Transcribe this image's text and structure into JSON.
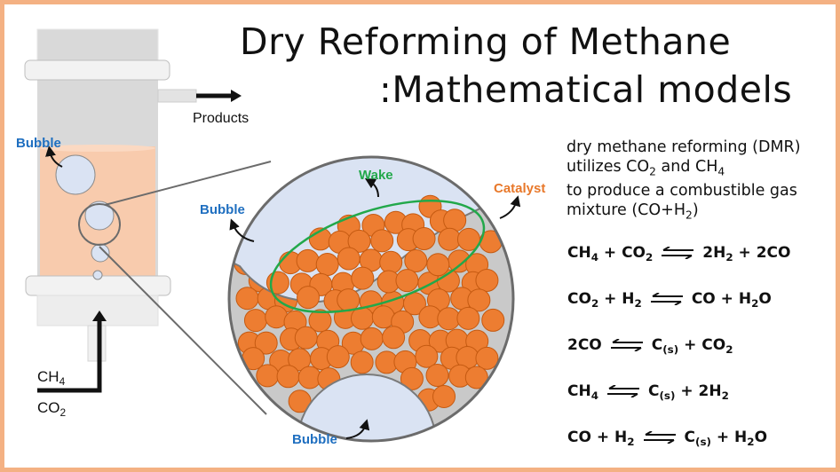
{
  "title": {
    "line1": "Dry Reforming of Methane",
    "line2": ":Mathematical models"
  },
  "labels": {
    "products": "Products",
    "bubble_reactor": "Bubble",
    "bubble_zoom_top": "Bubble",
    "bubble_zoom_bottom": "Bubble",
    "wake": "Wake",
    "catalyst": "Catalyst",
    "feed_ch4": [
      [
        "CH",
        ""
      ],
      [
        "4",
        "sub"
      ]
    ],
    "feed_co2": [
      [
        "CO",
        ""
      ],
      [
        "2",
        "sub"
      ]
    ]
  },
  "description": [
    [
      [
        "dry methane reforming (DMR)",
        ""
      ]
    ],
    [
      [
        "utilizes CO",
        ""
      ],
      [
        "2",
        "sub"
      ],
      [
        " and CH",
        ""
      ],
      [
        "4",
        "sub"
      ]
    ],
    [
      [
        "to produce a combustible gas",
        ""
      ]
    ],
    [
      [
        "mixture (CO+H",
        ""
      ],
      [
        "2",
        "sub"
      ],
      [
        ")",
        ""
      ]
    ]
  ],
  "reactions": [
    {
      "left": [
        [
          "CH",
          ""
        ],
        [
          "4",
          "sub"
        ],
        [
          " + CO",
          ""
        ],
        [
          "2",
          "sub"
        ]
      ],
      "right": [
        [
          "2H",
          ""
        ],
        [
          "2",
          "sub"
        ],
        [
          " + 2CO",
          ""
        ]
      ]
    },
    {
      "left": [
        [
          "CO",
          ""
        ],
        [
          "2",
          "sub"
        ],
        [
          " + H",
          ""
        ],
        [
          "2",
          "sub"
        ]
      ],
      "right": [
        [
          "CO + H",
          ""
        ],
        [
          "2",
          "sub"
        ],
        [
          "O",
          ""
        ]
      ]
    },
    {
      "left": [
        [
          "2CO",
          ""
        ]
      ],
      "right": [
        [
          "C",
          ""
        ],
        [
          "(s)",
          "sub"
        ],
        [
          " + CO",
          ""
        ],
        [
          "2",
          "sub"
        ]
      ]
    },
    {
      "left": [
        [
          "CH",
          ""
        ],
        [
          "4",
          "sub"
        ]
      ],
      "right": [
        [
          "C",
          ""
        ],
        [
          "(s)",
          "sub"
        ],
        [
          " + 2H",
          ""
        ],
        [
          "2",
          "sub"
        ]
      ]
    },
    {
      "left": [
        [
          "CO + H",
          ""
        ],
        [
          "2",
          "sub"
        ]
      ],
      "right": [
        [
          "C",
          ""
        ],
        [
          "(s)",
          "sub"
        ],
        [
          " + H",
          ""
        ],
        [
          "2",
          "sub"
        ],
        [
          "O",
          ""
        ]
      ]
    }
  ],
  "colors": {
    "border": "#f4b183",
    "liquid": "#f8cbad",
    "bubble": "#dae3f3",
    "catalyst": "#ed7d31",
    "bubble_label": "#1f6fc0",
    "wake": "#22a84a",
    "catalyst_label": "#e8782a",
    "reactor_gray": "#d9d9d9"
  },
  "icons": [
    "equilibrium-arrow-icon",
    "flow-arrow-icon",
    "curved-pointer-arrow-icon"
  ]
}
